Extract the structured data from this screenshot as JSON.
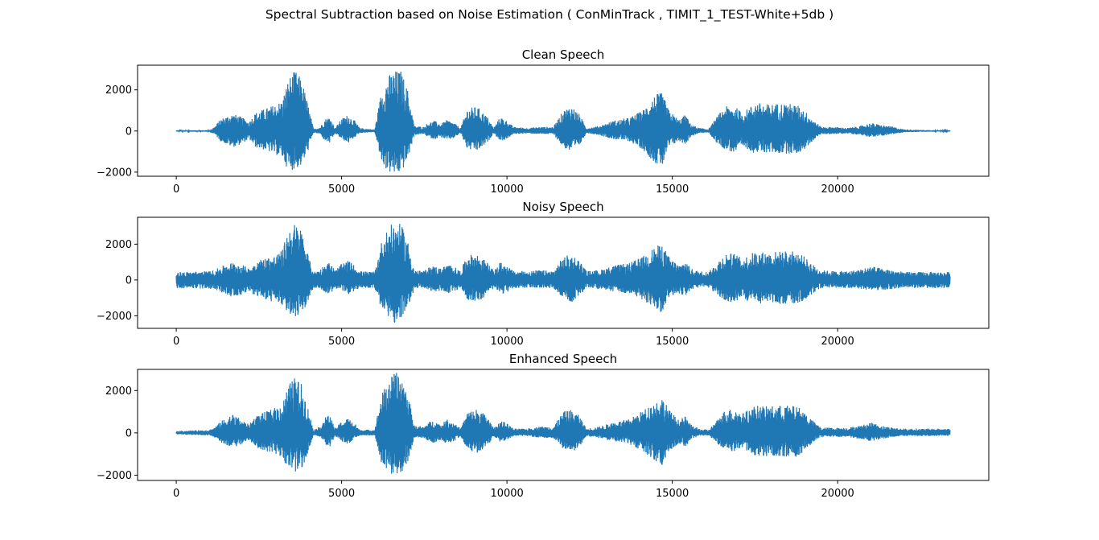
{
  "figure": {
    "suptitle": "Spectral Subtraction based on Noise Estimation ( ConMinTrack , TIMIT_1_TEST-White+5db )"
  },
  "colors": {
    "line": "#1f77b4",
    "axes": "#000000",
    "background": "#ffffff"
  },
  "chart_data": [
    {
      "type": "line",
      "title": "Clean Speech",
      "xlim": [
        -1170,
        24570
      ],
      "ylim": [
        -2200,
        3200
      ],
      "xticks": [
        0,
        5000,
        10000,
        15000,
        20000
      ],
      "xtick_labels": [
        "0",
        "5000",
        "10000",
        "15000",
        "20000"
      ],
      "yticks": [
        -2000,
        0,
        2000
      ],
      "ytick_labels": [
        "−2000",
        "0",
        "2000"
      ],
      "x_start": 0,
      "x_end": 23400,
      "grid": false,
      "envelope": [
        [
          0,
          30,
          -30
        ],
        [
          1000,
          40,
          -40
        ],
        [
          1150,
          200,
          -150
        ],
        [
          1350,
          600,
          -500
        ],
        [
          1700,
          850,
          -800
        ],
        [
          1950,
          700,
          -650
        ],
        [
          2200,
          450,
          -400
        ],
        [
          2400,
          900,
          -800
        ],
        [
          2700,
          1100,
          -950
        ],
        [
          3000,
          1300,
          -1150
        ],
        [
          3200,
          1500,
          -1300
        ],
        [
          3400,
          2600,
          -1950
        ],
        [
          3600,
          2950,
          -1850
        ],
        [
          3800,
          2500,
          -1700
        ],
        [
          4000,
          1200,
          -900
        ],
        [
          4150,
          100,
          -80
        ],
        [
          4350,
          200,
          -150
        ],
        [
          4500,
          600,
          -500
        ],
        [
          4650,
          700,
          -600
        ],
        [
          4800,
          150,
          -120
        ],
        [
          5000,
          600,
          -400
        ],
        [
          5200,
          800,
          -600
        ],
        [
          5400,
          500,
          -300
        ],
        [
          5550,
          150,
          -100
        ],
        [
          6000,
          70,
          -50
        ],
        [
          6200,
          1900,
          -1500
        ],
        [
          6400,
          2700,
          -2000
        ],
        [
          6600,
          2950,
          -2150
        ],
        [
          6800,
          2950,
          -2050
        ],
        [
          7000,
          2000,
          -1400
        ],
        [
          7200,
          250,
          -200
        ],
        [
          7500,
          200,
          -150
        ],
        [
          7600,
          400,
          -300
        ],
        [
          7800,
          500,
          -400
        ],
        [
          8000,
          350,
          -300
        ],
        [
          8200,
          550,
          -450
        ],
        [
          8400,
          400,
          -350
        ],
        [
          8600,
          150,
          -100
        ],
        [
          8800,
          1100,
          -900
        ],
        [
          9100,
          1200,
          -1000
        ],
        [
          9400,
          700,
          -600
        ],
        [
          9600,
          150,
          -100
        ],
        [
          9800,
          700,
          -500
        ],
        [
          10000,
          500,
          -400
        ],
        [
          10200,
          200,
          -150
        ],
        [
          10600,
          150,
          -120
        ],
        [
          11000,
          200,
          -150
        ],
        [
          11400,
          200,
          -150
        ],
        [
          11700,
          1000,
          -800
        ],
        [
          11950,
          1250,
          -1050
        ],
        [
          12200,
          800,
          -700
        ],
        [
          12400,
          150,
          -100
        ],
        [
          12800,
          250,
          -200
        ],
        [
          13200,
          500,
          -400
        ],
        [
          13700,
          650,
          -500
        ],
        [
          14100,
          1000,
          -900
        ],
        [
          14500,
          1800,
          -1600
        ],
        [
          14700,
          1850,
          -1750
        ],
        [
          14900,
          1000,
          -800
        ],
        [
          15200,
          550,
          -500
        ],
        [
          15400,
          800,
          -650
        ],
        [
          15550,
          350,
          -300
        ],
        [
          15800,
          150,
          -100
        ],
        [
          16100,
          100,
          -80
        ],
        [
          16350,
          700,
          -600
        ],
        [
          16600,
          1200,
          -900
        ],
        [
          16900,
          1200,
          -1100
        ],
        [
          17100,
          900,
          -800
        ],
        [
          17300,
          1100,
          -900
        ],
        [
          17500,
          1400,
          -1100
        ],
        [
          17900,
          1300,
          -1050
        ],
        [
          18200,
          1350,
          -1100
        ],
        [
          18500,
          1350,
          -1100
        ],
        [
          18800,
          1250,
          -1100
        ],
        [
          19000,
          1000,
          -900
        ],
        [
          19300,
          500,
          -400
        ],
        [
          19500,
          200,
          -150
        ],
        [
          19900,
          200,
          -150
        ],
        [
          20300,
          150,
          -120
        ],
        [
          20700,
          250,
          -200
        ],
        [
          21000,
          400,
          -300
        ],
        [
          21300,
          300,
          -250
        ],
        [
          21700,
          200,
          -150
        ],
        [
          22000,
          80,
          -60
        ],
        [
          22500,
          50,
          -40
        ],
        [
          23400,
          30,
          -30
        ]
      ]
    },
    {
      "type": "line",
      "title": "Noisy Speech",
      "xlim": [
        -1170,
        24570
      ],
      "ylim": [
        -2700,
        3500
      ],
      "xticks": [
        0,
        5000,
        10000,
        15000,
        20000
      ],
      "xtick_labels": [
        "0",
        "5000",
        "10000",
        "15000",
        "20000"
      ],
      "yticks": [
        -2000,
        0,
        2000
      ],
      "ytick_labels": [
        "−2000",
        "0",
        "2000"
      ],
      "x_start": 0,
      "x_end": 23400,
      "grid": false,
      "envelope": [
        [
          0,
          450,
          -450
        ],
        [
          1000,
          500,
          -500
        ],
        [
          1150,
          550,
          -500
        ],
        [
          1350,
          750,
          -700
        ],
        [
          1700,
          1000,
          -950
        ],
        [
          1950,
          900,
          -850
        ],
        [
          2200,
          650,
          -600
        ],
        [
          2400,
          1050,
          -950
        ],
        [
          2700,
          1250,
          -1100
        ],
        [
          3000,
          1400,
          -1300
        ],
        [
          3200,
          1650,
          -1450
        ],
        [
          3400,
          2900,
          -1900
        ],
        [
          3600,
          3200,
          -2050
        ],
        [
          3800,
          2800,
          -1900
        ],
        [
          4000,
          1300,
          -1100
        ],
        [
          4150,
          450,
          -450
        ],
        [
          4350,
          600,
          -500
        ],
        [
          4500,
          900,
          -700
        ],
        [
          4650,
          1000,
          -800
        ],
        [
          4800,
          550,
          -500
        ],
        [
          5000,
          900,
          -600
        ],
        [
          5200,
          1100,
          -800
        ],
        [
          5400,
          800,
          -600
        ],
        [
          5550,
          500,
          -450
        ],
        [
          6000,
          450,
          -450
        ],
        [
          6200,
          2100,
          -1600
        ],
        [
          6400,
          2900,
          -2000
        ],
        [
          6600,
          3250,
          -2450
        ],
        [
          6800,
          3100,
          -2200
        ],
        [
          7000,
          2200,
          -1600
        ],
        [
          7200,
          550,
          -500
        ],
        [
          7500,
          500,
          -450
        ],
        [
          7600,
          700,
          -600
        ],
        [
          7800,
          800,
          -700
        ],
        [
          8000,
          650,
          -600
        ],
        [
          8200,
          900,
          -750
        ],
        [
          8400,
          750,
          -650
        ],
        [
          8600,
          500,
          -450
        ],
        [
          8800,
          1400,
          -1100
        ],
        [
          9100,
          1450,
          -1200
        ],
        [
          9400,
          1000,
          -900
        ],
        [
          9600,
          500,
          -450
        ],
        [
          9800,
          1000,
          -800
        ],
        [
          10000,
          800,
          -700
        ],
        [
          10200,
          500,
          -450
        ],
        [
          10600,
          500,
          -450
        ],
        [
          11000,
          550,
          -450
        ],
        [
          11400,
          500,
          -450
        ],
        [
          11700,
          1300,
          -1000
        ],
        [
          11950,
          1450,
          -1250
        ],
        [
          12200,
          1100,
          -900
        ],
        [
          12400,
          500,
          -450
        ],
        [
          12800,
          550,
          -500
        ],
        [
          13200,
          800,
          -650
        ],
        [
          13700,
          950,
          -800
        ],
        [
          14100,
          1300,
          -1100
        ],
        [
          14500,
          1900,
          -1700
        ],
        [
          14700,
          2000,
          -1850
        ],
        [
          14900,
          1300,
          -1000
        ],
        [
          15200,
          850,
          -750
        ],
        [
          15400,
          1100,
          -900
        ],
        [
          15550,
          650,
          -550
        ],
        [
          15800,
          500,
          -450
        ],
        [
          16100,
          450,
          -450
        ],
        [
          16350,
          1000,
          -850
        ],
        [
          16600,
          1500,
          -1200
        ],
        [
          16900,
          1500,
          -1300
        ],
        [
          17100,
          1200,
          -1000
        ],
        [
          17300,
          1400,
          -1200
        ],
        [
          17500,
          1600,
          -1300
        ],
        [
          17900,
          1550,
          -1300
        ],
        [
          18200,
          1600,
          -1350
        ],
        [
          18500,
          1650,
          -1350
        ],
        [
          18800,
          1550,
          -1350
        ],
        [
          19000,
          1300,
          -1100
        ],
        [
          19300,
          800,
          -700
        ],
        [
          19500,
          550,
          -450
        ],
        [
          19900,
          500,
          -450
        ],
        [
          20300,
          500,
          -450
        ],
        [
          20700,
          600,
          -500
        ],
        [
          21000,
          800,
          -600
        ],
        [
          21300,
          650,
          -550
        ],
        [
          21700,
          550,
          -500
        ],
        [
          22000,
          450,
          -450
        ],
        [
          22500,
          450,
          -450
        ],
        [
          23400,
          450,
          -450
        ]
      ]
    },
    {
      "type": "line",
      "title": "Enhanced Speech",
      "xlim": [
        -1170,
        24570
      ],
      "ylim": [
        -2250,
        3000
      ],
      "xticks": [
        0,
        5000,
        10000,
        15000,
        20000
      ],
      "xtick_labels": [
        "0",
        "5000",
        "10000",
        "15000",
        "20000"
      ],
      "yticks": [
        -2000,
        0,
        2000
      ],
      "ytick_labels": [
        "−2000",
        "0",
        "2000"
      ],
      "x_start": 0,
      "x_end": 23400,
      "grid": false,
      "envelope": [
        [
          0,
          80,
          -80
        ],
        [
          1000,
          150,
          -120
        ],
        [
          1150,
          250,
          -200
        ],
        [
          1350,
          550,
          -450
        ],
        [
          1700,
          900,
          -700
        ],
        [
          1950,
          650,
          -550
        ],
        [
          2200,
          400,
          -350
        ],
        [
          2400,
          800,
          -700
        ],
        [
          2700,
          1000,
          -850
        ],
        [
          3000,
          1200,
          -1000
        ],
        [
          3200,
          1400,
          -1200
        ],
        [
          3400,
          2300,
          -1700
        ],
        [
          3600,
          2650,
          -1900
        ],
        [
          3800,
          2300,
          -1700
        ],
        [
          4000,
          1100,
          -900
        ],
        [
          4150,
          150,
          -120
        ],
        [
          4350,
          300,
          -200
        ],
        [
          4500,
          750,
          -550
        ],
        [
          4650,
          850,
          -650
        ],
        [
          4800,
          200,
          -150
        ],
        [
          5000,
          550,
          -400
        ],
        [
          5200,
          700,
          -550
        ],
        [
          5400,
          450,
          -300
        ],
        [
          5550,
          150,
          -120
        ],
        [
          6000,
          150,
          -120
        ],
        [
          6200,
          1800,
          -1400
        ],
        [
          6400,
          2500,
          -1800
        ],
        [
          6600,
          2850,
          -2150
        ],
        [
          6800,
          2800,
          -1900
        ],
        [
          7000,
          1900,
          -1400
        ],
        [
          7200,
          350,
          -250
        ],
        [
          7500,
          300,
          -250
        ],
        [
          7600,
          500,
          -400
        ],
        [
          7800,
          600,
          -500
        ],
        [
          8000,
          400,
          -350
        ],
        [
          8200,
          650,
          -550
        ],
        [
          8400,
          500,
          -400
        ],
        [
          8600,
          200,
          -150
        ],
        [
          8800,
          1000,
          -800
        ],
        [
          9100,
          1150,
          -950
        ],
        [
          9400,
          800,
          -700
        ],
        [
          9600,
          200,
          -150
        ],
        [
          9800,
          600,
          -450
        ],
        [
          10000,
          450,
          -350
        ],
        [
          10200,
          200,
          -150
        ],
        [
          10600,
          200,
          -150
        ],
        [
          11000,
          300,
          -250
        ],
        [
          11400,
          300,
          -250
        ],
        [
          11700,
          1000,
          -750
        ],
        [
          11950,
          1100,
          -950
        ],
        [
          12200,
          800,
          -650
        ],
        [
          12400,
          200,
          -150
        ],
        [
          12800,
          300,
          -250
        ],
        [
          13200,
          500,
          -400
        ],
        [
          13700,
          650,
          -550
        ],
        [
          14100,
          1050,
          -850
        ],
        [
          14500,
          1500,
          -1400
        ],
        [
          14700,
          1700,
          -1600
        ],
        [
          14900,
          1100,
          -900
        ],
        [
          15200,
          600,
          -500
        ],
        [
          15400,
          800,
          -650
        ],
        [
          15550,
          400,
          -350
        ],
        [
          15800,
          200,
          -150
        ],
        [
          16100,
          150,
          -120
        ],
        [
          16350,
          600,
          -500
        ],
        [
          16600,
          1100,
          -800
        ],
        [
          16900,
          1150,
          -950
        ],
        [
          17100,
          900,
          -750
        ],
        [
          17300,
          1100,
          -900
        ],
        [
          17500,
          1300,
          -1100
        ],
        [
          17900,
          1250,
          -1100
        ],
        [
          18200,
          1300,
          -1100
        ],
        [
          18500,
          1300,
          -1150
        ],
        [
          18800,
          1250,
          -1150
        ],
        [
          19000,
          1000,
          -850
        ],
        [
          19300,
          500,
          -400
        ],
        [
          19500,
          250,
          -200
        ],
        [
          19900,
          250,
          -200
        ],
        [
          20300,
          250,
          -200
        ],
        [
          20700,
          350,
          -300
        ],
        [
          21000,
          500,
          -400
        ],
        [
          21300,
          350,
          -300
        ],
        [
          21700,
          250,
          -200
        ],
        [
          22000,
          200,
          -150
        ],
        [
          22500,
          200,
          -150
        ],
        [
          23200,
          200,
          -150
        ]
      ]
    }
  ]
}
